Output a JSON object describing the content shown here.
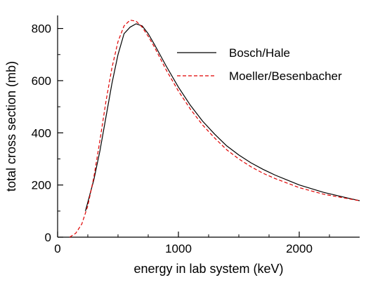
{
  "chart_data": {
    "type": "line",
    "xlabel": "energy in lab system (keV)",
    "ylabel": "total cross section (mb)",
    "xlim": [
      0,
      2500
    ],
    "ylim": [
      0,
      850
    ],
    "grid": false,
    "legend_position": "top-right",
    "x_ticks": [
      "0",
      "1000",
      "2000"
    ],
    "y_ticks": [
      "0",
      "200",
      "400",
      "600",
      "800"
    ],
    "series": [
      {
        "name": "Bosch/Hale",
        "color": "#000000",
        "style": "solid",
        "x": [
          230,
          300,
          350,
          400,
          450,
          500,
          550,
          600,
          650,
          700,
          750,
          800,
          900,
          1000,
          1100,
          1200,
          1300,
          1400,
          1500,
          1600,
          1700,
          1800,
          2000,
          2200,
          2400,
          2500
        ],
        "y": [
          100,
          220,
          330,
          460,
          590,
          700,
          780,
          805,
          818,
          810,
          780,
          740,
          655,
          575,
          505,
          445,
          395,
          350,
          315,
          285,
          260,
          238,
          200,
          172,
          150,
          140
        ]
      },
      {
        "name": "Moeller/Besenbacher",
        "color": "#e00000",
        "style": "dashed",
        "x": [
          100,
          150,
          200,
          250,
          300,
          350,
          400,
          450,
          500,
          550,
          600,
          650,
          700,
          750,
          800,
          900,
          1000,
          1100,
          1200,
          1300,
          1400,
          1500,
          1600,
          1700,
          1800,
          2000,
          2200,
          2400,
          2500
        ],
        "y": [
          0,
          15,
          50,
          120,
          230,
          370,
          520,
          650,
          750,
          810,
          832,
          828,
          805,
          770,
          730,
          640,
          560,
          490,
          430,
          380,
          335,
          300,
          270,
          245,
          225,
          190,
          165,
          148,
          140
        ]
      }
    ]
  }
}
